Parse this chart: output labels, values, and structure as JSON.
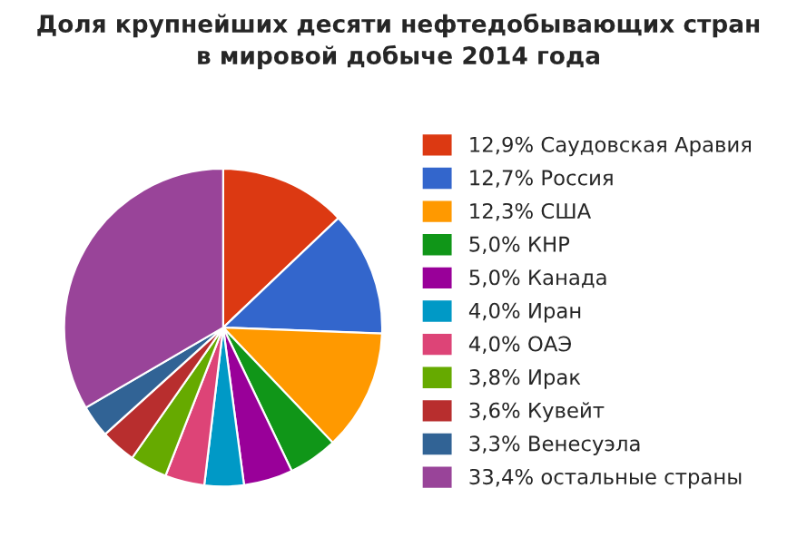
{
  "chart_data": {
    "type": "pie",
    "title": "Доля крупнейших десяти нефтедобывающих стран\nв мировой добыче 2014 года",
    "categories": [
      "12,9% Саудовская Аравия",
      "12,7% Россия",
      "12,3% США",
      "5,0% КНР",
      "5,0% Канада",
      "4,0% Иран",
      "4,0% ОАЭ",
      "3,8% Ирак",
      "3,6% Кувейт",
      "3,3% Венесуэла",
      "33,4% остальные страны"
    ],
    "values": [
      12.9,
      12.7,
      12.3,
      5.0,
      5.0,
      4.0,
      4.0,
      3.8,
      3.6,
      3.3,
      33.4
    ],
    "colors": [
      "#dc3912",
      "#3366cc",
      "#ff9900",
      "#109618",
      "#990099",
      "#0099c6",
      "#dd4477",
      "#66aa00",
      "#b82e2e",
      "#316395",
      "#994499"
    ],
    "legend": "right"
  }
}
